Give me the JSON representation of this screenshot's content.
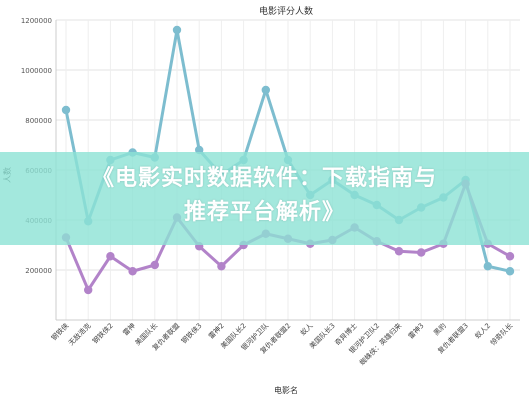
{
  "chart_data": {
    "type": "line",
    "title": "电影评分人数",
    "xlabel": "电影名",
    "ylabel": "人数",
    "ylim": [
      0,
      1200000
    ],
    "yticks": [
      200000,
      400000,
      600000,
      800000,
      1000000,
      1200000
    ],
    "ytick_labels": [
      "200000",
      "400000",
      "600000",
      "800000",
      "1000000",
      "1200000"
    ],
    "grid": true,
    "categories": [
      "钢铁侠",
      "无敌浩克",
      "钢铁侠2",
      "雷神",
      "美国队长",
      "复仇者联盟",
      "钢铁侠3",
      "雷神2",
      "美国队长2",
      "银河护卫队",
      "复仇者联盟2",
      "蚁人",
      "美国队长3",
      "奇异博士",
      "银河护卫队2",
      "蜘蛛侠：英雄归来",
      "雷神3",
      "黑豹",
      "复仇者联盟3",
      "蚁人2",
      "惊奇队长"
    ],
    "series": [
      {
        "color": "#7dbdcf",
        "values": [
          840000,
          395000,
          640000,
          670000,
          650000,
          1160000,
          680000,
          580000,
          640000,
          920000,
          640000,
          500000,
          560000,
          500000,
          460000,
          400000,
          450000,
          490000,
          560000,
          215000,
          195000
        ]
      },
      {
        "color": "#b283c9",
        "values": [
          330000,
          120000,
          255000,
          195000,
          220000,
          410000,
          295000,
          215000,
          300000,
          345000,
          325000,
          305000,
          320000,
          370000,
          315000,
          275000,
          270000,
          305000,
          545000,
          305000,
          255000
        ]
      }
    ]
  },
  "overlay": {
    "line1": "《电影实时数据软件：下载指南与",
    "line2": "推荐平台解析》"
  }
}
